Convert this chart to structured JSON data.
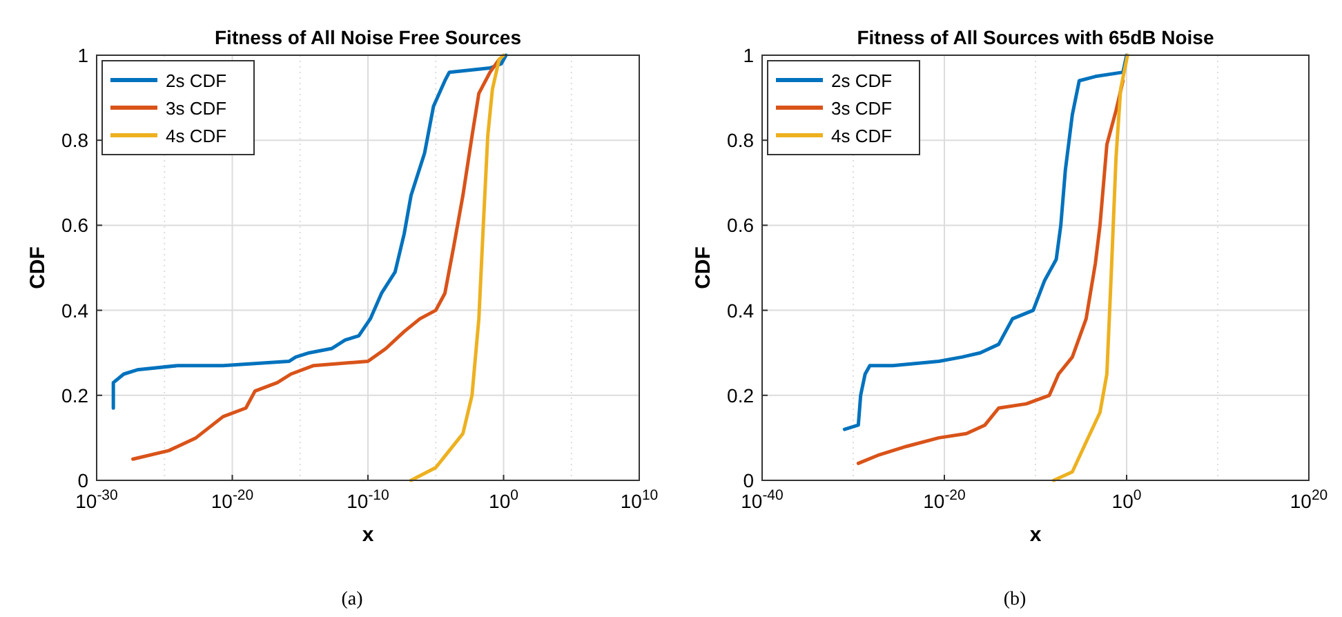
{
  "chart_data": [
    {
      "type": "line",
      "title": "Fitness of All Noise Free Sources",
      "xlabel": "x",
      "ylabel": "CDF",
      "log": "x",
      "grid": true,
      "legend": "top left",
      "line_style": "solid",
      "marker": "none",
      "xlim": [
        1e-30,
        10000000000.0
      ],
      "xticks": [
        {
          "value": 1e-30,
          "label": "10$^{-30}$"
        },
        {
          "value": 1e-20,
          "label": "10$^{-20}$"
        },
        {
          "value": 1e-10,
          "label": "10$^{-10}$"
        },
        {
          "value": 1,
          "label": "10$^{0}$"
        },
        {
          "value": 10000000000.0,
          "label": "10$^{10}$"
        }
      ],
      "ylim": [
        0,
        1
      ],
      "yticks": [
        0,
        0.2,
        0.4,
        0.6,
        0.8,
        1
      ],
      "annotations": [
        "(a)"
      ],
      "series": [
        {
          "name": "2s CDF",
          "color": "#0072bd",
          "x": [
            1.7e-29,
            1.7e-29,
            1e-28,
            1e-27,
            1e-24,
            2.1e-21,
            1.5e-16,
            4.7e-16,
            4.7e-15,
            2.1e-13,
            2.1e-12,
            2.1e-11,
            1.5e-10,
            1e-09,
            1e-08,
            4.7e-08,
            1.5e-07,
            1.5e-06,
            6.8e-06,
            4.7e-05,
            0.0001,
            0.1,
            0.68,
            1.5
          ],
          "values": [
            0.17,
            0.23,
            0.25,
            0.26,
            0.27,
            0.27,
            0.28,
            0.29,
            0.3,
            0.31,
            0.33,
            0.34,
            0.38,
            0.44,
            0.49,
            0.58,
            0.67,
            0.77,
            0.88,
            0.94,
            0.96,
            0.97,
            0.98,
            1
          ]
        },
        {
          "name": "3s CDF",
          "color": "#d95319",
          "x": [
            4.7e-28,
            2.1e-25,
            2.1e-23,
            2.1e-21,
            1e-19,
            4.7e-19,
            2.1e-17,
            2.1e-16,
            1e-14,
            1e-10,
            2.1e-09,
            4.7e-08,
            6.8e-07,
            1e-05,
            4.7e-05,
            0.00021,
            0.001,
            0.0047,
            0.015,
            0.1,
            0.47
          ],
          "values": [
            0.05,
            0.07,
            0.1,
            0.15,
            0.17,
            0.21,
            0.23,
            0.25,
            0.27,
            0.28,
            0.31,
            0.35,
            0.38,
            0.4,
            0.44,
            0.55,
            0.67,
            0.81,
            0.91,
            0.96,
            0.99
          ]
        },
        {
          "name": "4s CDF",
          "color": "#edb120",
          "x": [
            1.5e-07,
            1e-05,
            0.0001,
            0.001,
            0.0047,
            0.015,
            0.032,
            0.068,
            0.15,
            0.47,
            1
          ],
          "values": [
            0,
            0.03,
            0.07,
            0.11,
            0.2,
            0.38,
            0.6,
            0.81,
            0.92,
            0.99,
            1
          ]
        }
      ]
    },
    {
      "type": "line",
      "title": "Fitness of All Sources with 65dB Noise",
      "xlabel": "x",
      "ylabel": "CDF",
      "log": "x",
      "grid": true,
      "legend": "top left",
      "line_style": "solid",
      "marker": "none",
      "xlim": [
        1e-40,
        1e+20
      ],
      "xticks": [
        {
          "value": 1e-40,
          "label": "10$^{-40}$"
        },
        {
          "value": 1e-20,
          "label": "10$^{-20}$"
        },
        {
          "value": 1,
          "label": "10$^{0}$"
        },
        {
          "value": 1e+20,
          "label": "10$^{20}$"
        }
      ],
      "ylim": [
        0,
        1
      ],
      "yticks": [
        0,
        0.2,
        0.4,
        0.6,
        0.8,
        1
      ],
      "annotations": [
        "(b)"
      ],
      "series": [
        {
          "name": "2s CDF",
          "color": "#0072bd",
          "x": [
            1.1e-31,
            3.6e-30,
            6.5e-30,
            2e-29,
            6.6e-29,
            2.2e-26,
            2.5e-21,
            8.3e-19,
            8.7e-17,
            9.1e-15,
            3e-13,
            5.6e-11,
            1e-09,
            1.9e-08,
            6e-08,
            1.9e-07,
            1.1e-06,
            6.3e-06,
            0.00037,
            0.4,
            1
          ],
          "values": [
            0.12,
            0.13,
            0.2,
            0.25,
            0.27,
            0.27,
            0.28,
            0.29,
            0.3,
            0.32,
            0.38,
            0.4,
            0.47,
            0.52,
            0.6,
            0.73,
            0.86,
            0.94,
            0.95,
            0.96,
            1
          ]
        },
        {
          "name": "3s CDF",
          "color": "#d95319",
          "x": [
            3.6e-30,
            6.8e-28,
            7.2e-25,
            2.5e-21,
            2.6e-18,
            2.8e-16,
            9.1e-15,
            9.8e-12,
            3.3e-09,
            3.4e-08,
            1.1e-06,
            3.6e-05,
            0.00037,
            0.0012,
            0.0068,
            0.069,
            0.4
          ],
          "values": [
            0.04,
            0.06,
            0.08,
            0.1,
            0.11,
            0.13,
            0.17,
            0.18,
            0.2,
            0.25,
            0.29,
            0.38,
            0.51,
            0.6,
            0.79,
            0.87,
            0.94
          ]
        },
        {
          "name": "4s CDF",
          "color": "#edb120",
          "x": [
            1e-08,
            1.1e-06,
            3.6e-05,
            0.0012,
            0.0068,
            0.021,
            0.069,
            0.22,
            1.26
          ],
          "values": [
            0,
            0.02,
            0.09,
            0.16,
            0.25,
            0.49,
            0.76,
            0.92,
            1
          ]
        }
      ]
    }
  ]
}
